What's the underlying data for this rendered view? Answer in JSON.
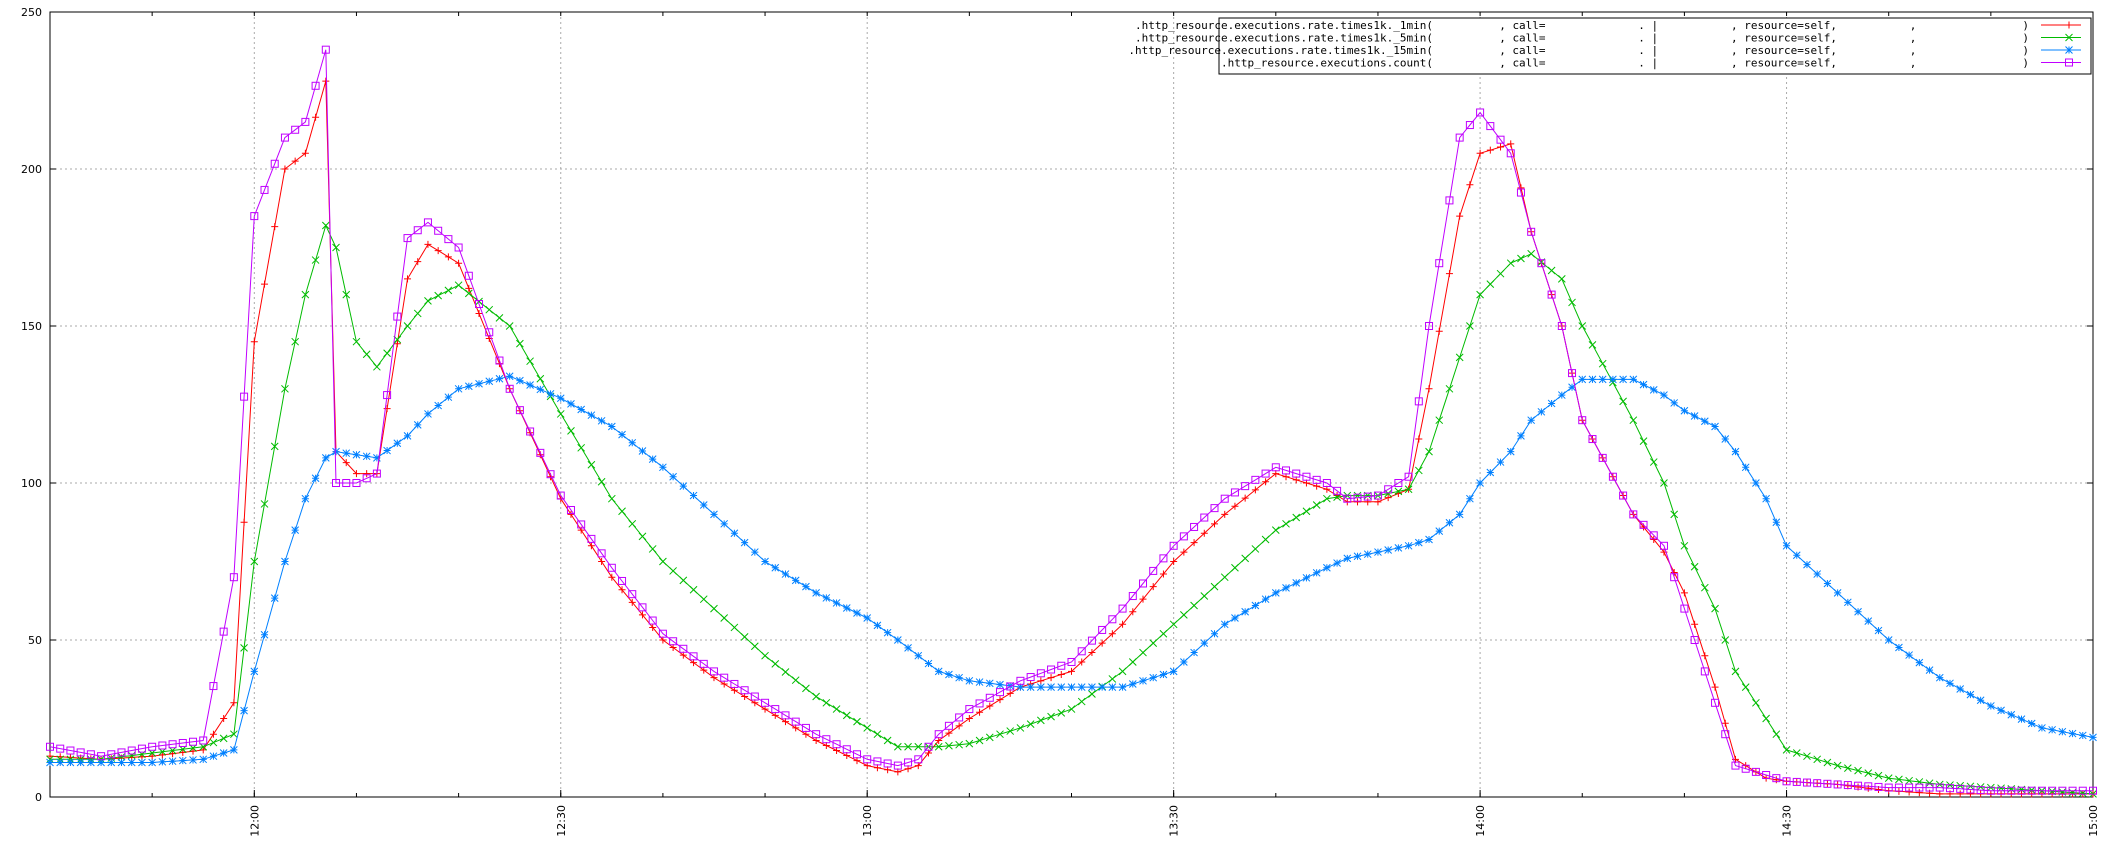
{
  "chart_data": {
    "type": "line",
    "title": "",
    "xlabel": "",
    "ylabel": "",
    "xlim": [
      "11:40",
      "15:00"
    ],
    "ylim": [
      0,
      250
    ],
    "grid": true,
    "legend_position": "top-right",
    "y_ticks": [
      "0",
      "50",
      "100",
      "150",
      "200",
      "250"
    ],
    "x_ticks": [
      "12:00",
      "12:30",
      "13:00",
      "13:30",
      "14:00",
      "14:30",
      "15:00"
    ],
    "series": [
      {
        "name": ".http_resource.executions.rate.times1k._1min(          , call=              . |           , resource=self,           ,                )",
        "color": "#ff0000",
        "marker": "plus",
        "x": [
          "11:40",
          "11:45",
          "11:50",
          "11:55",
          "11:58",
          "12:00",
          "12:03",
          "12:05",
          "12:07",
          "12:08",
          "12:10",
          "12:12",
          "12:15",
          "12:17",
          "12:20",
          "12:25",
          "12:30",
          "12:35",
          "12:40",
          "12:45",
          "12:50",
          "12:55",
          "13:00",
          "13:03",
          "13:05",
          "13:07",
          "13:10",
          "13:15",
          "13:20",
          "13:25",
          "13:30",
          "13:35",
          "13:40",
          "13:45",
          "13:47",
          "13:50",
          "13:53",
          "13:55",
          "13:58",
          "14:00",
          "14:03",
          "14:05",
          "14:08",
          "14:10",
          "14:15",
          "14:18",
          "14:20",
          "14:23",
          "14:25",
          "14:28",
          "14:30",
          "14:35",
          "14:40",
          "14:45",
          "14:50",
          "14:55",
          "15:00"
        ],
        "values": [
          13,
          12,
          13,
          15,
          30,
          145,
          200,
          205,
          228,
          110,
          103,
          103,
          165,
          176,
          170,
          130,
          95,
          70,
          50,
          38,
          28,
          18,
          10,
          8,
          10,
          18,
          25,
          35,
          40,
          55,
          75,
          90,
          103,
          98,
          94,
          94,
          98,
          130,
          185,
          205,
          208,
          180,
          150,
          120,
          90,
          78,
          65,
          35,
          12,
          6,
          5,
          4,
          2,
          1,
          1,
          1,
          1
        ]
      },
      {
        "name": ".http_resource.executions.rate.times1k._5min(          , call=              . |           , resource=self,           ,                )",
        "color": "#00bb00",
        "marker": "cross",
        "x": [
          "11:40",
          "11:45",
          "11:50",
          "11:55",
          "11:58",
          "12:00",
          "12:03",
          "12:05",
          "12:07",
          "12:08",
          "12:10",
          "12:12",
          "12:15",
          "12:17",
          "12:20",
          "12:25",
          "12:30",
          "12:35",
          "12:40",
          "12:45",
          "12:50",
          "12:55",
          "13:00",
          "13:03",
          "13:05",
          "13:07",
          "13:10",
          "13:15",
          "13:20",
          "13:25",
          "13:30",
          "13:35",
          "13:40",
          "13:45",
          "13:47",
          "13:50",
          "13:53",
          "13:55",
          "13:58",
          "14:00",
          "14:03",
          "14:05",
          "14:08",
          "14:10",
          "14:15",
          "14:18",
          "14:20",
          "14:23",
          "14:25",
          "14:28",
          "14:30",
          "14:35",
          "14:40",
          "14:45",
          "14:50",
          "14:55",
          "15:00"
        ],
        "values": [
          12,
          12,
          14,
          16,
          20,
          75,
          130,
          160,
          182,
          175,
          145,
          137,
          150,
          158,
          163,
          150,
          122,
          95,
          75,
          60,
          45,
          32,
          22,
          16,
          16,
          16,
          17,
          22,
          28,
          40,
          55,
          70,
          85,
          95,
          96,
          96,
          98,
          110,
          140,
          160,
          170,
          173,
          165,
          150,
          120,
          100,
          80,
          60,
          40,
          25,
          15,
          10,
          6,
          4,
          3,
          2,
          1
        ]
      },
      {
        "name": ".http_resource.executions.rate.times1k._15min(          , call=              . |           , resource=self,           ,                )",
        "color": "#0080ff",
        "marker": "star",
        "x": [
          "11:40",
          "11:45",
          "11:50",
          "11:55",
          "11:58",
          "12:00",
          "12:03",
          "12:05",
          "12:07",
          "12:08",
          "12:10",
          "12:12",
          "12:15",
          "12:17",
          "12:20",
          "12:25",
          "12:30",
          "12:35",
          "12:40",
          "12:45",
          "12:50",
          "12:55",
          "13:00",
          "13:03",
          "13:05",
          "13:07",
          "13:10",
          "13:15",
          "13:20",
          "13:25",
          "13:30",
          "13:35",
          "13:40",
          "13:45",
          "13:47",
          "13:50",
          "13:53",
          "13:55",
          "13:58",
          "14:00",
          "14:03",
          "14:05",
          "14:08",
          "14:10",
          "14:15",
          "14:18",
          "14:20",
          "14:23",
          "14:25",
          "14:28",
          "14:30",
          "14:35",
          "14:40",
          "14:45",
          "14:50",
          "14:55",
          "15:00"
        ],
        "values": [
          11,
          11,
          11,
          12,
          15,
          40,
          75,
          95,
          108,
          110,
          109,
          108,
          115,
          122,
          130,
          134,
          127,
          118,
          105,
          90,
          75,
          65,
          57,
          50,
          45,
          40,
          37,
          35,
          35,
          35,
          40,
          55,
          65,
          73,
          76,
          78,
          80,
          82,
          90,
          100,
          110,
          120,
          128,
          133,
          133,
          128,
          123,
          118,
          110,
          95,
          80,
          65,
          50,
          38,
          29,
          22,
          19
        ]
      },
      {
        "name": ".http_resource.executions.count(          , call=              . |           , resource=self,           ,                )",
        "color": "#c000ff",
        "marker": "square",
        "x": [
          "11:40",
          "11:45",
          "11:50",
          "11:55",
          "11:58",
          "12:00",
          "12:03",
          "12:05",
          "12:07",
          "12:08",
          "12:10",
          "12:12",
          "12:15",
          "12:17",
          "12:20",
          "12:25",
          "12:30",
          "12:35",
          "12:40",
          "12:45",
          "12:50",
          "12:55",
          "13:00",
          "13:03",
          "13:05",
          "13:07",
          "13:10",
          "13:15",
          "13:20",
          "13:25",
          "13:30",
          "13:35",
          "13:40",
          "13:45",
          "13:47",
          "13:50",
          "13:53",
          "13:55",
          "13:58",
          "14:00",
          "14:03",
          "14:05",
          "14:08",
          "14:10",
          "14:15",
          "14:18",
          "14:20",
          "14:23",
          "14:25",
          "14:28",
          "14:30",
          "14:35",
          "14:40",
          "14:45",
          "14:50",
          "14:55",
          "15:00"
        ],
        "values": [
          16,
          13,
          16,
          18,
          70,
          185,
          210,
          215,
          238,
          100,
          100,
          103,
          178,
          183,
          175,
          130,
          96,
          73,
          52,
          40,
          30,
          20,
          12,
          10,
          12,
          20,
          28,
          37,
          43,
          60,
          80,
          95,
          105,
          100,
          95,
          96,
          102,
          150,
          210,
          218,
          205,
          180,
          150,
          120,
          90,
          80,
          60,
          30,
          10,
          7,
          5,
          4,
          3,
          3,
          2,
          2,
          2
        ]
      }
    ]
  }
}
